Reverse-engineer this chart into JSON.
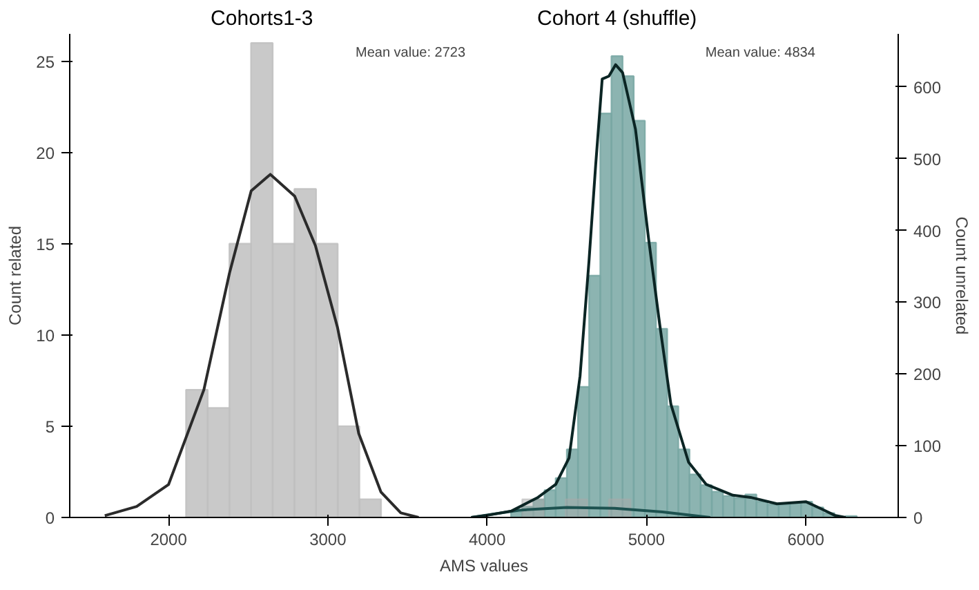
{
  "chart_data": {
    "type": "histogram",
    "xlabel": "AMS values",
    "ylabel": "Count related",
    "y2label": "Count unrelated",
    "xlim": [
      1380,
      6580
    ],
    "ylim": [
      0,
      26.5
    ],
    "y2lim": [
      0,
      674
    ],
    "xticks": [
      2000,
      3000,
      4000,
      5000,
      6000
    ],
    "yticks": [
      0,
      5,
      10,
      15,
      20,
      25
    ],
    "y2ticks": [
      0,
      100,
      200,
      300,
      400,
      500,
      600
    ],
    "grid": false,
    "series": [
      {
        "name": "Cohorts1-3",
        "color": "#c0c0c0",
        "bins": [
          2110,
          2246,
          2382,
          2518,
          2654,
          2790,
          2926,
          3062,
          3198,
          3334
        ],
        "values": [
          7,
          6,
          15,
          26,
          15,
          18,
          15,
          5,
          1
        ]
      },
      {
        "name": "Cohort 4 (shuffle)",
        "axis": "y2",
        "color": "#78a7a3",
        "bins": [
          4150,
          4220,
          4290,
          4360,
          4430,
          4500,
          4570,
          4640,
          4710,
          4780,
          4850,
          4920,
          4990,
          5060,
          5130,
          5200,
          5270,
          5340,
          5410,
          5480,
          5550,
          5620,
          5690,
          5760,
          5830,
          5900,
          5970,
          6040,
          6110,
          6180,
          6250,
          6320,
          6390
        ],
        "values": [
          8,
          15,
          25,
          38,
          55,
          95,
          182,
          337,
          563,
          643,
          615,
          553,
          383,
          263,
          155,
          95,
          60,
          45,
          36,
          30,
          27,
          32,
          22,
          18,
          18,
          20,
          22,
          14,
          6,
          null,
          2,
          null
        ]
      },
      {
        "color": "#a8a8a8",
        "bins": [
          4220,
          4356,
          4492,
          4628,
          4764,
          4900
        ],
        "values": [
          1,
          0,
          1,
          0,
          1
        ]
      },
      {
        "type": "line",
        "color": "#2b2b2b",
        "x": [
          1600,
          1800,
          2000,
          2222,
          2383,
          2519,
          2639,
          2792,
          2922,
          3061,
          3194,
          3333,
          3458,
          3570
        ],
        "values": [
          0.1,
          0.6,
          1.8,
          7,
          13.4,
          17.9,
          18.8,
          17.6,
          14.9,
          10.4,
          4.6,
          1.4,
          0.25,
          0
        ]
      },
      {
        "type": "line",
        "color": "#1d5250",
        "x": [
          3900,
          4200,
          4500,
          4800,
          5100,
          5400
        ],
        "values": [
          0,
          0.4,
          0.55,
          0.5,
          0.3,
          0
        ]
      },
      {
        "type": "line",
        "axis": "y2",
        "color": "#0b2524",
        "x": [
          3900,
          4000,
          4153,
          4319,
          4430,
          4514,
          4583,
          4639,
          4681,
          4722,
          4764,
          4806,
          4850,
          4931,
          5014,
          5083,
          5153,
          5264,
          5375,
          5542,
          5653,
          5819,
          6000,
          6097,
          6181,
          6250
        ],
        "values": [
          0,
          3,
          9,
          28,
          46,
          83,
          197,
          357,
          491,
          611,
          615,
          631,
          620,
          541,
          387,
          269,
          158,
          77,
          46,
          31,
          28,
          19,
          22,
          12,
          3,
          0
        ]
      }
    ],
    "annotations": [
      "Mean value: 2723",
      "Mean value: 4834"
    ]
  }
}
